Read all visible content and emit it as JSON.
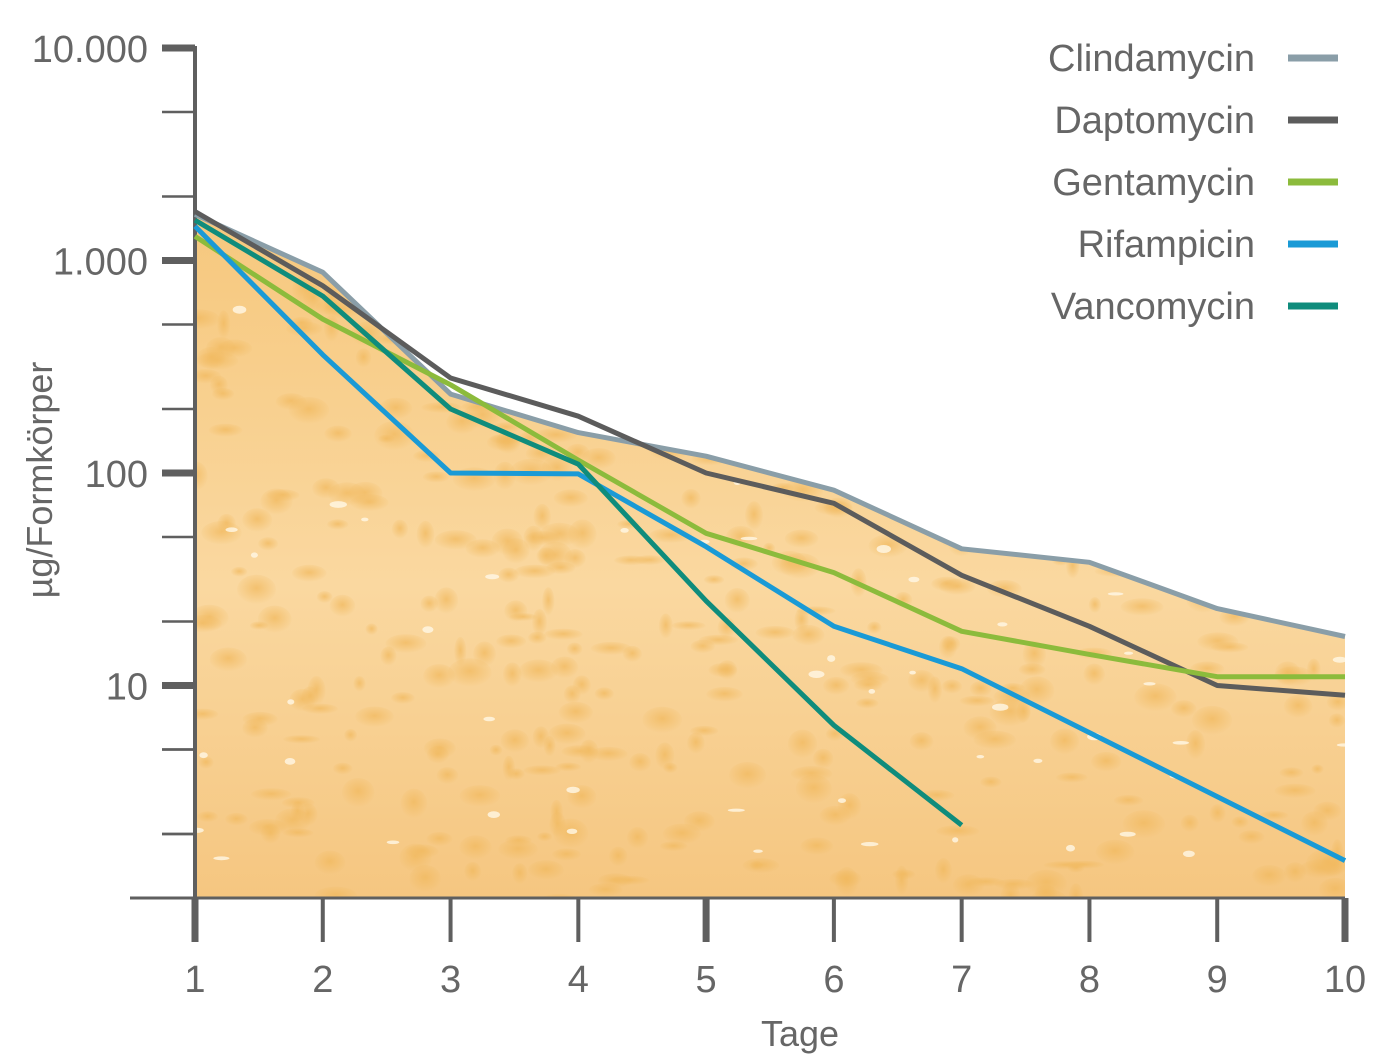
{
  "chart_data": {
    "type": "line",
    "xlabel": "Tage",
    "ylabel": "µg/Formkörper",
    "y_scale": "log",
    "ylim": [
      1,
      10000
    ],
    "xlim": [
      1,
      10
    ],
    "x": [
      1,
      2,
      3,
      4,
      5,
      6,
      7,
      8,
      9,
      10
    ],
    "x_tick_labels": [
      "1",
      "2",
      "3",
      "4",
      "5",
      "6",
      "7",
      "8",
      "9",
      "10"
    ],
    "y_ticks": [
      10,
      100,
      1000,
      10000
    ],
    "y_tick_labels": [
      "10",
      "100",
      "1.000",
      "10.000"
    ],
    "legend_position": "top-right",
    "grid": false,
    "background": "sponge texture (orange) under the Clindamycin curve",
    "series": [
      {
        "name": "Clindamycin",
        "color": "#8a9ea8",
        "values": [
          1650,
          880,
          235,
          155,
          120,
          83,
          44,
          38,
          23,
          17
        ]
      },
      {
        "name": "Daptomycin",
        "color": "#5c5c5c",
        "values": [
          1700,
          760,
          280,
          185,
          100,
          72,
          33,
          19,
          10,
          9
        ]
      },
      {
        "name": "Gentamycin",
        "color": "#8cbb3c",
        "values": [
          1300,
          530,
          260,
          115,
          52,
          34,
          18,
          14,
          11,
          11
        ]
      },
      {
        "name": "Rifampicin",
        "color": "#1a9ad6",
        "values": [
          1450,
          360,
          100,
          99,
          45,
          19,
          12,
          6,
          3,
          1.5
        ]
      },
      {
        "name": "Vancomycin",
        "color": "#0f8c7c",
        "values": [
          1550,
          680,
          200,
          110,
          25,
          6.5,
          2.2,
          null,
          null,
          null
        ]
      }
    ]
  }
}
